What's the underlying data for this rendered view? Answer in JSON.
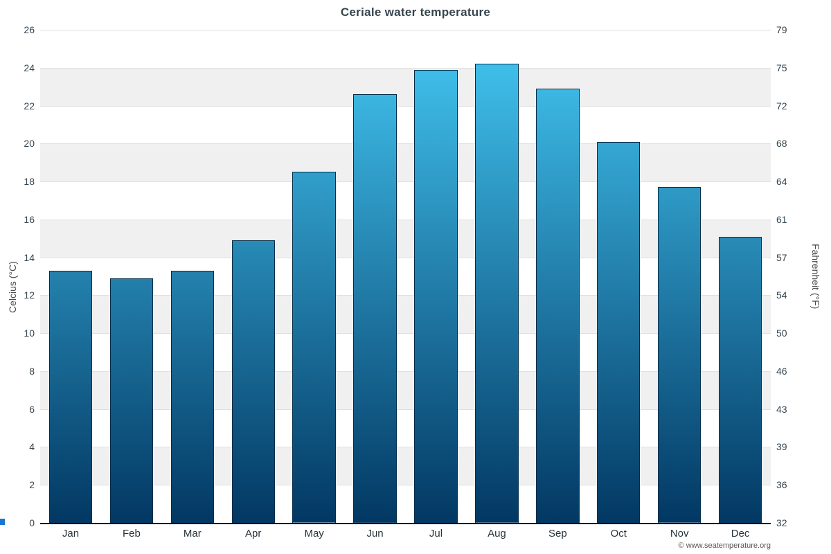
{
  "title": "Ceriale water temperature",
  "footer": "© www.seatemperature.org",
  "axes": {
    "left_label": "Celcius (°C)",
    "right_label": "Fahrenheit (°F)"
  },
  "chart_data": {
    "type": "bar",
    "title": "Ceriale water temperature",
    "categories": [
      "Jan",
      "Feb",
      "Mar",
      "Apr",
      "May",
      "Jun",
      "Jul",
      "Aug",
      "Sep",
      "Oct",
      "Nov",
      "Dec"
    ],
    "values": [
      13.3,
      12.9,
      13.3,
      14.9,
      18.5,
      22.6,
      23.9,
      24.2,
      22.9,
      20.1,
      17.7,
      15.1
    ],
    "xlabel": "",
    "ylabel_left": "Celcius (°C)",
    "ylabel_right": "Fahrenheit (°F)",
    "ylim_c": [
      0,
      26
    ],
    "yticks_c": [
      0,
      2,
      4,
      6,
      8,
      10,
      12,
      14,
      16,
      18,
      20,
      22,
      24,
      26
    ],
    "yticks_f": [
      32,
      36,
      39,
      43,
      46,
      50,
      54,
      57,
      61,
      64,
      68,
      72,
      75,
      79
    ],
    "grid": true,
    "legend": "none",
    "band_colors": [
      "#ffffff",
      "#f0f0f0"
    ],
    "bar_gradient_top": "#44c8f4",
    "bar_gradient_bottom": "#023863",
    "bar_border_color": "#012c49"
  }
}
